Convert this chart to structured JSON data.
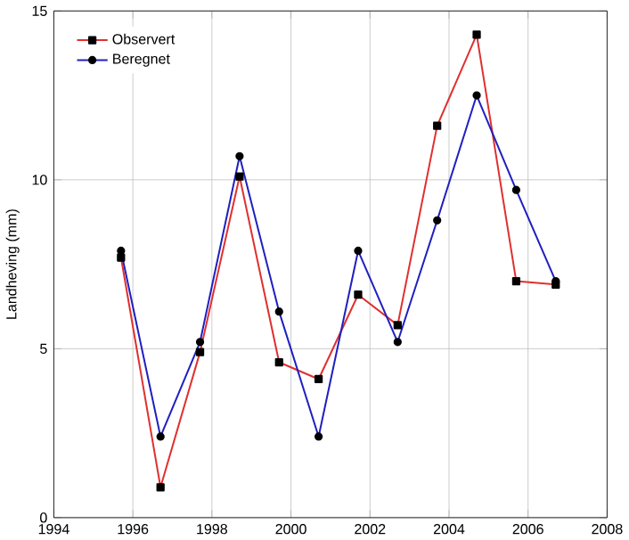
{
  "chart_data": {
    "type": "line",
    "ylabel": "Landheving (mm)",
    "xlim": [
      1994,
      2008
    ],
    "xticks": [
      1994,
      1996,
      1998,
      2000,
      2002,
      2004,
      2006,
      2008
    ],
    "ylim": [
      0,
      15
    ],
    "yticks": [
      0,
      5,
      10,
      15
    ],
    "grid": true,
    "legend": "top left",
    "x": [
      1995.7,
      1996.7,
      1997.7,
      1998.7,
      1999.7,
      2000.7,
      2001.7,
      2002.7,
      2003.7,
      2004.7,
      2005.7,
      2006.7
    ],
    "series": [
      {
        "name": "Observert",
        "color": "#e03030",
        "marker": "square",
        "values": [
          7.7,
          0.9,
          4.9,
          10.1,
          4.6,
          4.1,
          6.6,
          5.7,
          11.6,
          14.3,
          7.0,
          6.9
        ]
      },
      {
        "name": "Beregnet",
        "color": "#2020c0",
        "marker": "circle",
        "values": [
          7.9,
          2.4,
          5.2,
          10.7,
          6.1,
          2.4,
          7.9,
          5.2,
          8.8,
          12.5,
          9.7,
          7.0
        ]
      }
    ]
  }
}
